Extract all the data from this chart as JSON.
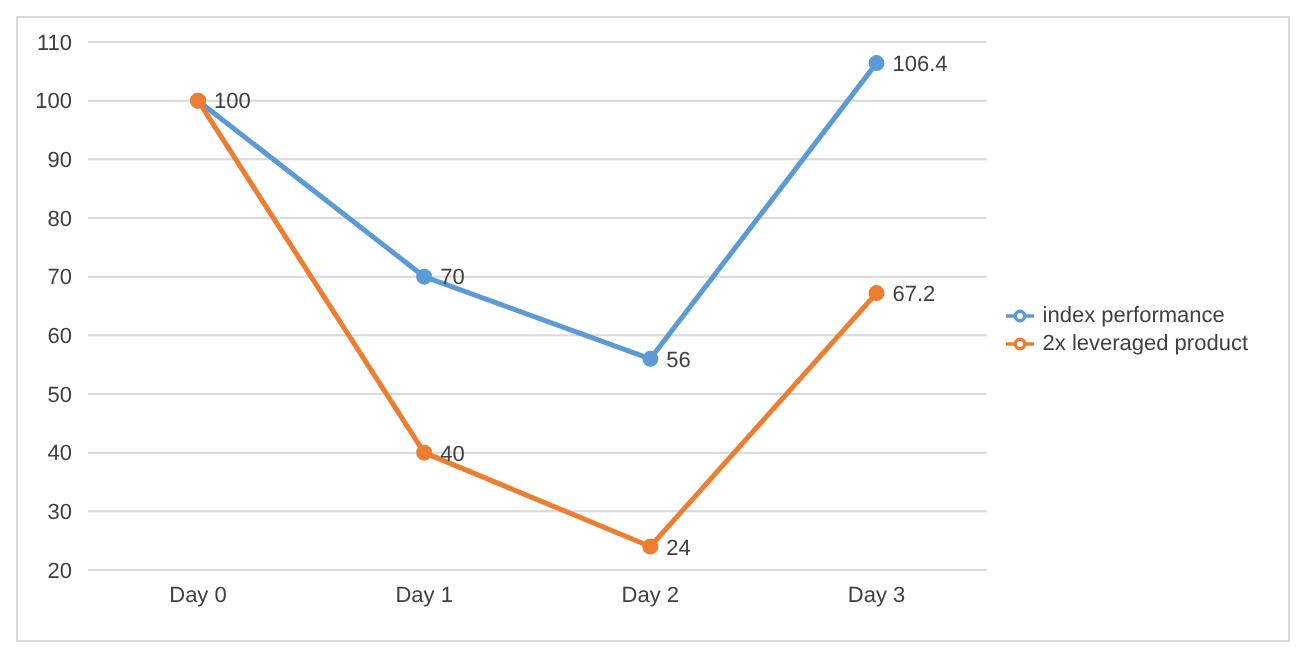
{
  "chart_data": {
    "type": "line",
    "categories": [
      "Day 0",
      "Day 1",
      "Day 2",
      "Day 3"
    ],
    "series": [
      {
        "name": "index performance",
        "color": "#5b9bd5",
        "values": [
          100,
          70,
          56,
          106.4
        ]
      },
      {
        "name": "2x leveraged product",
        "color": "#ed7d31",
        "values": [
          100,
          40,
          24,
          67.2
        ],
        "value_labels": [
          null,
          "40",
          "24",
          "67.2"
        ]
      }
    ],
    "ylim": [
      20,
      110
    ],
    "yticks": [
      20,
      30,
      40,
      50,
      60,
      70,
      80,
      90,
      100,
      110
    ],
    "grid": "y",
    "legend": "right",
    "marker": "circle",
    "line_style": "solid",
    "data_labels": true
  }
}
